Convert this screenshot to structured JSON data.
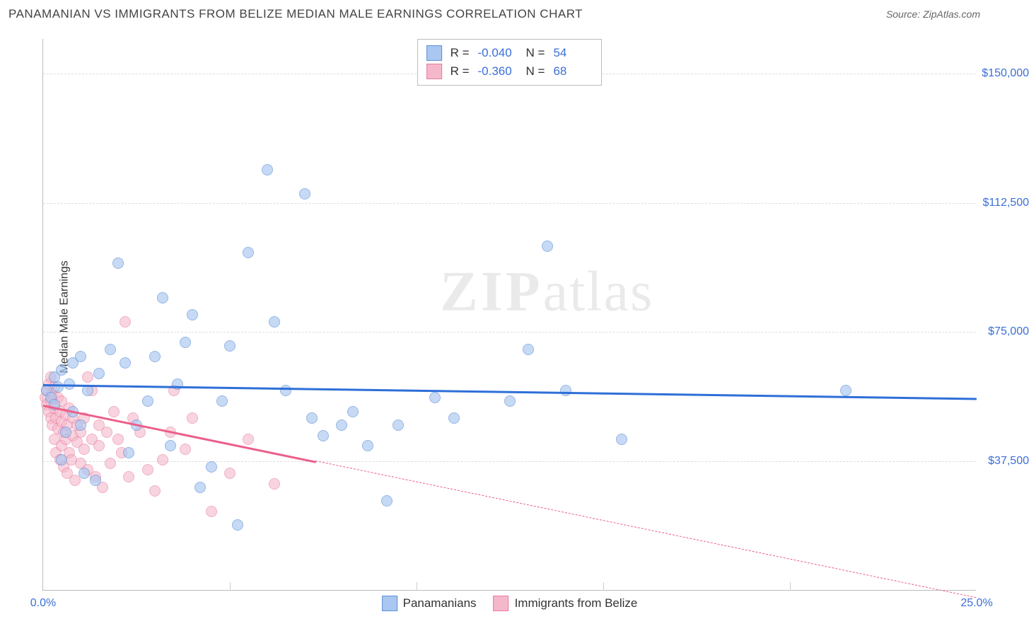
{
  "header": {
    "title": "PANAMANIAN VS IMMIGRANTS FROM BELIZE MEDIAN MALE EARNINGS CORRELATION CHART",
    "source": "Source: ZipAtlas.com"
  },
  "watermark": {
    "bold": "ZIP",
    "rest": "atlas"
  },
  "chart": {
    "type": "scatter",
    "ylabel": "Median Male Earnings",
    "background_color": "#ffffff",
    "grid_color": "#dddddd",
    "axis_color": "#bbbbbb",
    "label_fontsize": 16,
    "tick_color": "#3b6fd8",
    "xlim": [
      0,
      25
    ],
    "ylim": [
      0,
      160000
    ],
    "x_ticks": [
      {
        "v": 0,
        "label": "0.0%"
      },
      {
        "v": 25,
        "label": "25.0%"
      }
    ],
    "x_minor_ticks": [
      5,
      10,
      15,
      20
    ],
    "y_ticks": [
      {
        "v": 37500,
        "label": "$37,500"
      },
      {
        "v": 75000,
        "label": "$75,000"
      },
      {
        "v": 112500,
        "label": "$112,500"
      },
      {
        "v": 150000,
        "label": "$150,000"
      }
    ],
    "series": [
      {
        "name": "Panamanians",
        "fill": "#a9c7f0",
        "stroke": "#5f8fd8",
        "opacity": 0.65,
        "marker_radius": 8,
        "r_value": "-0.040",
        "n_value": "54",
        "trend": {
          "color": "#2e6fd8",
          "y_start": 60000,
          "y_end": 56000,
          "solid_until_x": 25
        },
        "points": [
          [
            0.1,
            58000
          ],
          [
            0.2,
            56000
          ],
          [
            0.3,
            62000
          ],
          [
            0.3,
            54000
          ],
          [
            0.4,
            59000
          ],
          [
            0.5,
            38000
          ],
          [
            0.5,
            64000
          ],
          [
            0.6,
            46000
          ],
          [
            0.7,
            60000
          ],
          [
            0.8,
            66000
          ],
          [
            0.8,
            52000
          ],
          [
            1.0,
            48000
          ],
          [
            1.0,
            68000
          ],
          [
            1.1,
            34000
          ],
          [
            1.2,
            58000
          ],
          [
            1.4,
            32000
          ],
          [
            1.5,
            63000
          ],
          [
            1.8,
            70000
          ],
          [
            2.0,
            95000
          ],
          [
            2.2,
            66000
          ],
          [
            2.5,
            48000
          ],
          [
            2.8,
            55000
          ],
          [
            3.0,
            68000
          ],
          [
            3.2,
            85000
          ],
          [
            3.4,
            42000
          ],
          [
            3.6,
            60000
          ],
          [
            3.8,
            72000
          ],
          [
            4.0,
            80000
          ],
          [
            4.5,
            36000
          ],
          [
            4.8,
            55000
          ],
          [
            5.0,
            71000
          ],
          [
            5.2,
            19000
          ],
          [
            5.5,
            98000
          ],
          [
            6.0,
            122000
          ],
          [
            6.2,
            78000
          ],
          [
            6.5,
            58000
          ],
          [
            7.0,
            115000
          ],
          [
            7.2,
            50000
          ],
          [
            7.5,
            45000
          ],
          [
            8.0,
            48000
          ],
          [
            8.3,
            52000
          ],
          [
            8.7,
            42000
          ],
          [
            9.2,
            26000
          ],
          [
            9.5,
            48000
          ],
          [
            10.5,
            56000
          ],
          [
            11.0,
            50000
          ],
          [
            12.5,
            55000
          ],
          [
            13.0,
            70000
          ],
          [
            13.5,
            100000
          ],
          [
            15.5,
            44000
          ],
          [
            21.5,
            58000
          ],
          [
            14.0,
            58000
          ],
          [
            4.2,
            30000
          ],
          [
            2.3,
            40000
          ]
        ]
      },
      {
        "name": "Immigrants from Belize",
        "fill": "#f5b8ca",
        "stroke": "#e87ba0",
        "opacity": 0.6,
        "marker_radius": 8,
        "r_value": "-0.360",
        "n_value": "68",
        "trend": {
          "color": "#ec5e8a",
          "y_start": 54000,
          "y_end": -2000,
          "solid_until_x": 7.3
        },
        "points": [
          [
            0.05,
            56000
          ],
          [
            0.1,
            54000
          ],
          [
            0.1,
            58000
          ],
          [
            0.15,
            52000
          ],
          [
            0.15,
            60000
          ],
          [
            0.2,
            50000
          ],
          [
            0.2,
            55000
          ],
          [
            0.2,
            62000
          ],
          [
            0.25,
            48000
          ],
          [
            0.25,
            57000
          ],
          [
            0.3,
            44000
          ],
          [
            0.3,
            53000
          ],
          [
            0.3,
            59000
          ],
          [
            0.35,
            40000
          ],
          [
            0.35,
            50000
          ],
          [
            0.4,
            47000
          ],
          [
            0.4,
            56000
          ],
          [
            0.45,
            38000
          ],
          [
            0.45,
            52000
          ],
          [
            0.5,
            42000
          ],
          [
            0.5,
            49000
          ],
          [
            0.5,
            55000
          ],
          [
            0.55,
            36000
          ],
          [
            0.55,
            46000
          ],
          [
            0.6,
            44000
          ],
          [
            0.6,
            51000
          ],
          [
            0.65,
            34000
          ],
          [
            0.65,
            48000
          ],
          [
            0.7,
            40000
          ],
          [
            0.7,
            53000
          ],
          [
            0.75,
            38000
          ],
          [
            0.8,
            45000
          ],
          [
            0.8,
            50000
          ],
          [
            0.85,
            32000
          ],
          [
            0.9,
            43000
          ],
          [
            0.9,
            48000
          ],
          [
            1.0,
            37000
          ],
          [
            1.0,
            46000
          ],
          [
            1.1,
            41000
          ],
          [
            1.1,
            50000
          ],
          [
            1.2,
            35000
          ],
          [
            1.3,
            44000
          ],
          [
            1.3,
            58000
          ],
          [
            1.4,
            33000
          ],
          [
            1.5,
            42000
          ],
          [
            1.5,
            48000
          ],
          [
            1.6,
            30000
          ],
          [
            1.7,
            46000
          ],
          [
            1.8,
            37000
          ],
          [
            1.9,
            52000
          ],
          [
            2.0,
            44000
          ],
          [
            2.1,
            40000
          ],
          [
            2.3,
            33000
          ],
          [
            2.4,
            50000
          ],
          [
            2.6,
            46000
          ],
          [
            2.8,
            35000
          ],
          [
            3.0,
            29000
          ],
          [
            3.2,
            38000
          ],
          [
            3.4,
            46000
          ],
          [
            3.5,
            58000
          ],
          [
            3.8,
            41000
          ],
          [
            4.0,
            50000
          ],
          [
            4.5,
            23000
          ],
          [
            5.0,
            34000
          ],
          [
            5.5,
            44000
          ],
          [
            6.2,
            31000
          ],
          [
            2.2,
            78000
          ],
          [
            1.2,
            62000
          ]
        ]
      }
    ]
  }
}
